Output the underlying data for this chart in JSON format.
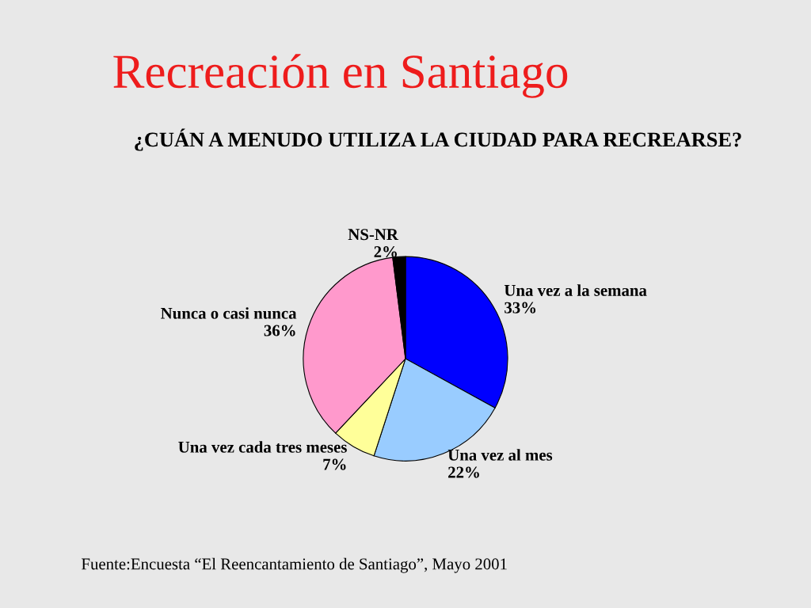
{
  "chart_data": {
    "type": "pie",
    "title": "Recreación en Santiago",
    "subtitle": "¿CUÁN A MENUDO UTILIZA LA CIUDAD PARA RECREARSE?",
    "categories": [
      "Una vez a la semana",
      "Una vez al mes",
      "Una vez cada tres meses",
      "Nunca o casi nunca",
      "NS-NR"
    ],
    "values": [
      33,
      22,
      7,
      36,
      2
    ],
    "value_labels": [
      "33%",
      "22%",
      "7%",
      "36%",
      "2%"
    ],
    "colors": [
      "#0000ff",
      "#99ccff",
      "#ffff99",
      "#ff99cc",
      "#000000"
    ],
    "annotations": [
      "Fuente:Encuesta “El Reencantamiento de Santiago”, Mayo 2001"
    ]
  }
}
